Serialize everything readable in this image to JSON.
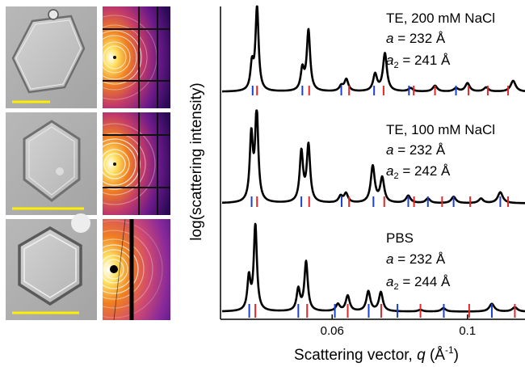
{
  "chart_data": {
    "type": "line",
    "title": "",
    "xlabel": "Scattering vector, q (Å⁻¹)",
    "xlabel_parts": {
      "main": "Scattering vector, ",
      "var": "q",
      "open": " (Å",
      "exp": "-1",
      "close": ")"
    },
    "ylabel": "log(scattering intensity)",
    "xlim": [
      0.027,
      0.117
    ],
    "xticks": [
      {
        "value": 0.06,
        "label": "0.06"
      },
      {
        "value": 0.1,
        "label": "0.1"
      }
    ],
    "grid": false,
    "legend": "none",
    "line_color": "#000000",
    "tick_colors": {
      "blue": "#1f3fd0",
      "red": "#e0282d"
    },
    "images": {
      "microscopy_scale_bar_color": "#ffee00",
      "saxs_colormap": [
        "#2a0a55",
        "#6a1a8a",
        "#c23a6a",
        "#f08020",
        "#ffe060",
        "#ffffff"
      ]
    },
    "series": [
      {
        "labels": {
          "sample": "TE, 200 mM NaCl",
          "a_var": "a",
          "a_val": " = 232 Å",
          "a2_var": "a",
          "a2_sub": "2",
          "a2_val": " = 241 Å"
        },
        "peaks": [
          {
            "q": 0.0363,
            "h": 0.3,
            "w": 0.00055
          },
          {
            "q": 0.0378,
            "h": 1.0,
            "w": 0.00055
          },
          {
            "q": 0.0512,
            "h": 0.25,
            "w": 0.0006
          },
          {
            "q": 0.053,
            "h": 0.72,
            "w": 0.0006
          },
          {
            "q": 0.0627,
            "h": 0.06,
            "w": 0.0007
          },
          {
            "q": 0.0642,
            "h": 0.14,
            "w": 0.0007
          },
          {
            "q": 0.0727,
            "h": 0.2,
            "w": 0.0007
          },
          {
            "q": 0.0756,
            "h": 0.45,
            "w": 0.0007
          },
          {
            "q": 0.0832,
            "h": 0.04,
            "w": 0.0008
          },
          {
            "q": 0.0904,
            "h": 0.07,
            "w": 0.0008
          },
          {
            "q": 0.0966,
            "h": 0.04,
            "w": 0.0008
          },
          {
            "q": 0.1,
            "h": 0.1,
            "w": 0.0008
          },
          {
            "q": 0.1055,
            "h": 0.05,
            "w": 0.0008
          },
          {
            "q": 0.1135,
            "h": 0.13,
            "w": 0.0009
          }
        ],
        "blue_ticks": [
          0.0365,
          0.0512,
          0.0627,
          0.0724,
          0.0827,
          0.0966
        ],
        "red_ticks": [
          0.0378,
          0.0532,
          0.065,
          0.0752,
          0.0841,
          0.0904,
          0.1003,
          0.106,
          0.112
        ]
      },
      {
        "labels": {
          "sample": "TE, 100 mM NaCl",
          "a_var": "a",
          "a_val": " = 232 Å",
          "a2_var": "a",
          "a2_sub": "2",
          "a2_val": " = 242 Å"
        },
        "peaks": [
          {
            "q": 0.0361,
            "h": 0.72,
            "w": 0.00055
          },
          {
            "q": 0.0377,
            "h": 1.0,
            "w": 0.00055
          },
          {
            "q": 0.0509,
            "h": 0.55,
            "w": 0.0006
          },
          {
            "q": 0.053,
            "h": 0.62,
            "w": 0.0006
          },
          {
            "q": 0.0625,
            "h": 0.07,
            "w": 0.0007
          },
          {
            "q": 0.0641,
            "h": 0.1,
            "w": 0.0007
          },
          {
            "q": 0.072,
            "h": 0.4,
            "w": 0.0007
          },
          {
            "q": 0.0748,
            "h": 0.27,
            "w": 0.0007
          },
          {
            "q": 0.0825,
            "h": 0.08,
            "w": 0.0008
          },
          {
            "q": 0.0883,
            "h": 0.05,
            "w": 0.0008
          },
          {
            "q": 0.0959,
            "h": 0.07,
            "w": 0.0008
          },
          {
            "q": 0.104,
            "h": 0.05,
            "w": 0.0008
          },
          {
            "q": 0.1097,
            "h": 0.12,
            "w": 0.0009
          }
        ],
        "blue_ticks": [
          0.0362,
          0.0509,
          0.0628,
          0.0722,
          0.0825,
          0.0883,
          0.0959,
          0.1097
        ],
        "red_ticks": [
          0.0378,
          0.0532,
          0.065,
          0.0754,
          0.0842,
          0.0925,
          0.1008,
          0.112
        ]
      },
      {
        "labels": {
          "sample": "PBS",
          "a_var": "a",
          "a_val": " = 232 Å",
          "a2_var": "a",
          "a2_sub": "2",
          "a2_val": " = 244 Å"
        },
        "peaks": [
          {
            "q": 0.0354,
            "h": 0.38,
            "w": 0.00055
          },
          {
            "q": 0.0373,
            "h": 1.0,
            "w": 0.00055
          },
          {
            "q": 0.05,
            "h": 0.25,
            "w": 0.0006
          },
          {
            "q": 0.0523,
            "h": 0.57,
            "w": 0.0006
          },
          {
            "q": 0.0617,
            "h": 0.08,
            "w": 0.0007
          },
          {
            "q": 0.0646,
            "h": 0.18,
            "w": 0.0007
          },
          {
            "q": 0.0707,
            "h": 0.23,
            "w": 0.0007
          },
          {
            "q": 0.0744,
            "h": 0.22,
            "w": 0.0007
          },
          {
            "q": 0.0861,
            "h": 0.02,
            "w": 0.0008
          },
          {
            "q": 0.0929,
            "h": 0.04,
            "w": 0.0008
          },
          {
            "q": 0.1072,
            "h": 0.09,
            "w": 0.0009
          },
          {
            "q": 0.114,
            "h": 0.05,
            "w": 0.0009
          }
        ],
        "blue_ticks": [
          0.0355,
          0.05,
          0.0608,
          0.0708,
          0.0793,
          0.093,
          0.1072
        ],
        "red_ticks": [
          0.0373,
          0.0526,
          0.0646,
          0.0745,
          0.0861,
          0.1005,
          0.114
        ]
      }
    ]
  }
}
